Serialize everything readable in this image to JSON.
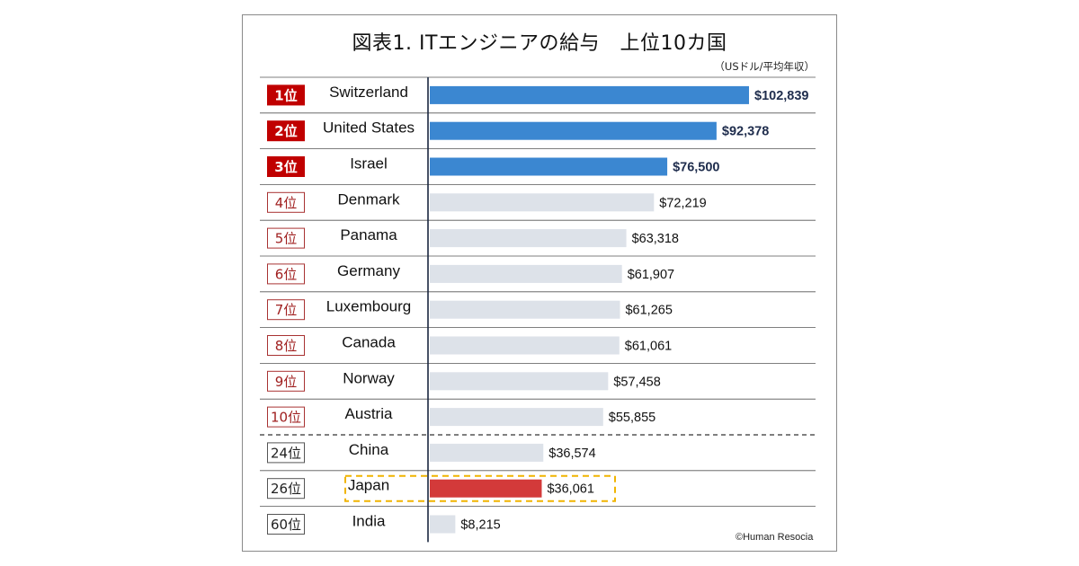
{
  "chart_data": {
    "type": "bar",
    "orientation": "horizontal",
    "title": "図表1. ITエンジニアの給与　上位10カ国",
    "unit_note": "（USドル/平均年収）",
    "credit": "©Human Resocia",
    "rows": [
      {
        "rank": "1位",
        "country": "Switzerland",
        "value": 102839,
        "label": "$102,839"
      },
      {
        "rank": "2位",
        "country": "United States",
        "value": 92378,
        "label": "$92,378"
      },
      {
        "rank": "3位",
        "country": "Israel",
        "value": 76500,
        "label": "$76,500"
      },
      {
        "rank": "4位",
        "country": "Denmark",
        "value": 72219,
        "label": "$72,219"
      },
      {
        "rank": "5位",
        "country": "Panama",
        "value": 63318,
        "label": "$63,318"
      },
      {
        "rank": "6位",
        "country": "Germany",
        "value": 61907,
        "label": "$61,907"
      },
      {
        "rank": "7位",
        "country": "Luxembourg",
        "value": 61265,
        "label": "$61,265"
      },
      {
        "rank": "8位",
        "country": "Canada",
        "value": 61061,
        "label": "$61,061"
      },
      {
        "rank": "9位",
        "country": "Norway",
        "value": 57458,
        "label": "$57,458"
      },
      {
        "rank": "10位",
        "country": "Austria",
        "value": 55855,
        "label": "$55,855"
      },
      {
        "rank": "24位",
        "country": "China",
        "value": 36574,
        "label": "$36,574"
      },
      {
        "rank": "26位",
        "country": "Japan",
        "value": 36061,
        "label": "$36,061"
      },
      {
        "rank": "60位",
        "country": "India",
        "value": 8215,
        "label": "$8,215"
      }
    ],
    "highlight_country": "Japan",
    "colors": {
      "top3_bar": "#3b87d1",
      "other_bar": "#dde2e9",
      "highlight_bar": "#d33a3a",
      "top3_badge_fill": "#c00000",
      "top10_badge_border": "#a83232",
      "other_badge_border": "#555555",
      "highlight_box": "#f0b400",
      "divider": "#333333"
    }
  }
}
